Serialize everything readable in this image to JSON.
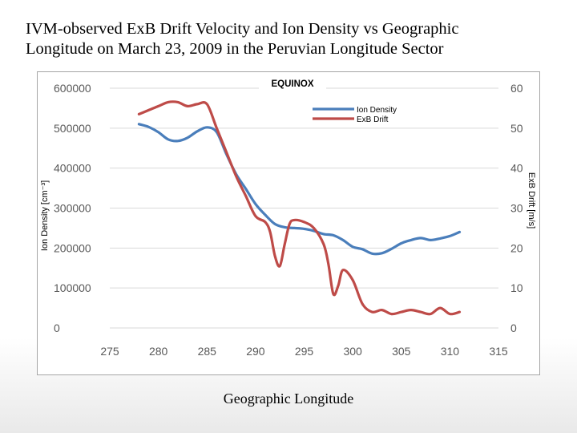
{
  "slide": {
    "title_line1": "IVM-observed ExB Drift Velocity and Ion Density vs Geographic",
    "title_line2": "Longitude on March 23, 2009 in the Peruvian Longitude Sector",
    "x_axis_label": "Geographic Longitude"
  },
  "colors": {
    "ion_density": "#4a7ebb",
    "exb_drift": "#be4b48",
    "tick_text": "#595959",
    "grid": "#d9d9d9"
  },
  "chart_data": {
    "type": "line",
    "title": "EQUINOX",
    "xlabel": "Geographic Longitude",
    "ylabel": "Ion Density [cm⁻³]",
    "y2label": "ExB Drift [m/s]",
    "xlim": [
      275,
      315
    ],
    "ylim": [
      0,
      600000
    ],
    "y2lim": [
      0,
      60
    ],
    "x_ticks": [
      "275",
      "280",
      "285",
      "290",
      "295",
      "300",
      "305",
      "310",
      "315"
    ],
    "y_ticks": [
      "0",
      "100000",
      "200000",
      "300000",
      "400000",
      "500000",
      "600000"
    ],
    "y2_ticks": [
      "0",
      "10",
      "20",
      "30",
      "40",
      "50",
      "60"
    ],
    "grid": "horizontal",
    "legend_position": "top-right",
    "series": [
      {
        "name": "Ion Density",
        "axis": "left",
        "x": [
          278,
          279,
          280,
          281,
          282,
          283,
          284,
          285,
          286,
          287,
          288,
          289,
          290,
          291,
          292,
          293,
          294,
          295,
          296,
          297,
          298,
          299,
          300,
          301,
          302,
          303,
          304,
          305,
          306,
          307,
          308,
          309,
          310,
          311
        ],
        "values": [
          510000,
          503000,
          490000,
          472000,
          468000,
          476000,
          492000,
          502000,
          490000,
          435000,
          385000,
          348000,
          310000,
          283000,
          260000,
          252000,
          250000,
          248000,
          243000,
          235000,
          232000,
          220000,
          203000,
          197000,
          186000,
          187000,
          198000,
          212000,
          220000,
          225000,
          220000,
          224000,
          230000,
          240000
        ]
      },
      {
        "name": "ExB Drift",
        "axis": "right",
        "x": [
          278,
          279,
          280,
          281,
          282,
          283,
          284,
          285,
          286,
          287,
          288,
          289,
          290,
          291,
          291.5,
          292,
          292.5,
          293,
          293.5,
          294,
          295,
          296,
          297,
          297.5,
          298,
          298.5,
          299,
          300,
          301,
          302,
          303,
          304,
          305,
          306,
          307,
          308,
          309,
          310,
          311
        ],
        "values": [
          53.5,
          54.5,
          55.5,
          56.5,
          56.5,
          55.5,
          56,
          56,
          50,
          44,
          38,
          33,
          28,
          26.5,
          24,
          18,
          15.5,
          21,
          26,
          27,
          26.5,
          25,
          21,
          16,
          8.5,
          10.5,
          14.5,
          12,
          6,
          4,
          4.5,
          3.5,
          4,
          4.5,
          4,
          3.5,
          5,
          3.5,
          4
        ]
      }
    ]
  }
}
